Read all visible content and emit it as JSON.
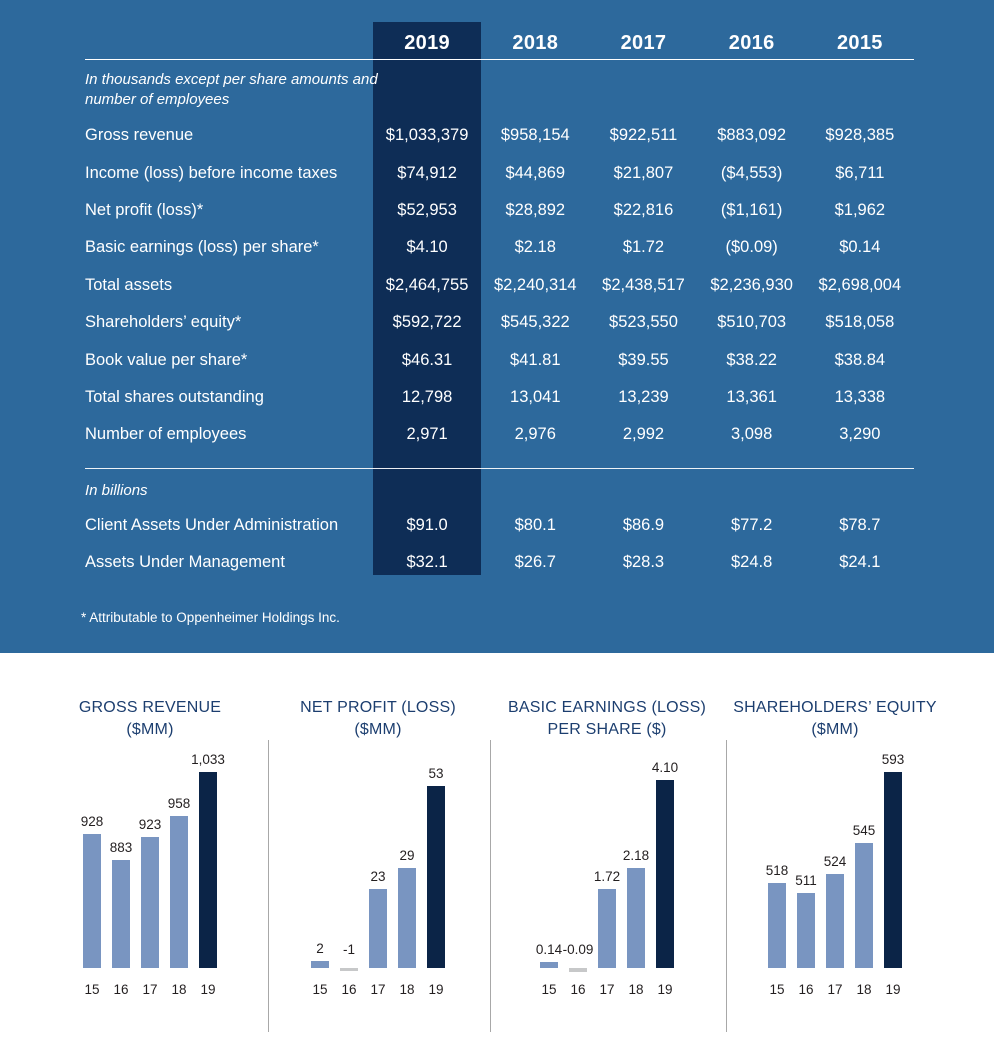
{
  "colors": {
    "panel_blue": "#2d699c",
    "highlight_navy": "#0e2d56",
    "bar_light": "#7995c1",
    "bar_dark": "#0b2447",
    "bar_negative": "#c7c8c9",
    "chart_title_blue": "#1c3e6f",
    "chart_text": "#231f20",
    "divider_gray": "#a8a8a8",
    "table_text": "#ffffff"
  },
  "table": {
    "years": [
      "2019",
      "2018",
      "2017",
      "2016",
      "2015"
    ],
    "unit_note": "In thousands except per share amounts and number of employees",
    "rows": [
      {
        "label": "Gross revenue",
        "values": [
          "$1,033,379",
          "$958,154",
          "$922,511",
          "$883,092",
          "$928,385"
        ]
      },
      {
        "label": "Income (loss) before income taxes",
        "values": [
          "$74,912",
          "$44,869",
          "$21,807",
          "($4,553)",
          "$6,711"
        ]
      },
      {
        "label": "Net profit (loss)*",
        "values": [
          "$52,953",
          "$28,892",
          "$22,816",
          "($1,161)",
          "$1,962"
        ]
      },
      {
        "label": "Basic earnings (loss) per share*",
        "values": [
          "$4.10",
          "$2.18",
          "$1.72",
          "($0.09)",
          "$0.14"
        ]
      },
      {
        "label": "Total assets",
        "values": [
          "$2,464,755",
          "$2,240,314",
          "$2,438,517",
          "$2,236,930",
          "$2,698,004"
        ]
      },
      {
        "label": "Shareholders’ equity*",
        "values": [
          "$592,722",
          "$545,322",
          "$523,550",
          "$510,703",
          "$518,058"
        ]
      },
      {
        "label": "Book value per share*",
        "values": [
          "$46.31",
          "$41.81",
          "$39.55",
          "$38.22",
          "$38.84"
        ]
      },
      {
        "label": "Total shares outstanding",
        "values": [
          "12,798",
          "13,041",
          "13,239",
          "13,361",
          "13,338"
        ]
      },
      {
        "label": "Number of employees",
        "values": [
          "2,971",
          "2,976",
          "2,992",
          "3,098",
          "3,290"
        ]
      }
    ],
    "billions_note": "In billions",
    "billions_rows": [
      {
        "label": "Client Assets Under Administration",
        "values": [
          "$91.0",
          "$80.1",
          "$86.9",
          "$77.2",
          "$78.7"
        ]
      },
      {
        "label": "Assets Under Management",
        "values": [
          "$32.1",
          "$26.7",
          "$28.3",
          "$24.8",
          "$24.1"
        ]
      }
    ],
    "footnote": "* Attributable to Oppenheimer Holdings Inc."
  },
  "chart_data": [
    {
      "type": "bar",
      "title": "GROSS REVENUE",
      "unit_label": "($MM)",
      "categories": [
        "15",
        "16",
        "17",
        "18",
        "19"
      ],
      "values": [
        928,
        883,
        923,
        958,
        1033
      ],
      "labels": [
        "928",
        "883",
        "923",
        "958",
        "1,033"
      ],
      "xlabel": "",
      "ylabel": "",
      "ylim": [
        700,
        1050
      ],
      "grid": false,
      "legend": false
    },
    {
      "type": "bar",
      "title": "NET PROFIT (LOSS)",
      "unit_label": "($MM)",
      "categories": [
        "15",
        "16",
        "17",
        "18",
        "19"
      ],
      "values": [
        2,
        -1,
        23,
        29,
        53
      ],
      "labels": [
        "2",
        "-1",
        "23",
        "29",
        "53"
      ],
      "xlabel": "",
      "ylabel": "",
      "ylim": [
        0,
        60
      ],
      "grid": false,
      "legend": false
    },
    {
      "type": "bar",
      "title": "BASIC EARNINGS (LOSS)",
      "unit_label": "PER SHARE ($)",
      "categories": [
        "15",
        "16",
        "17",
        "18",
        "19"
      ],
      "values": [
        0.14,
        -0.09,
        1.72,
        2.18,
        4.1
      ],
      "labels": [
        "0.14",
        "-0.09",
        "1.72",
        "2.18",
        "4.10"
      ],
      "xlabel": "",
      "ylabel": "",
      "ylim": [
        0,
        4.5
      ],
      "grid": false,
      "legend": false
    },
    {
      "type": "bar",
      "title": "SHAREHOLDERS’ EQUITY",
      "unit_label": "($MM)",
      "categories": [
        "15",
        "16",
        "17",
        "18",
        "19"
      ],
      "values": [
        518,
        511,
        524,
        545,
        593
      ],
      "labels": [
        "518",
        "511",
        "524",
        "545",
        "593"
      ],
      "xlabel": "",
      "ylabel": "",
      "ylim": [
        460,
        600
      ],
      "grid": false,
      "legend": false
    }
  ]
}
